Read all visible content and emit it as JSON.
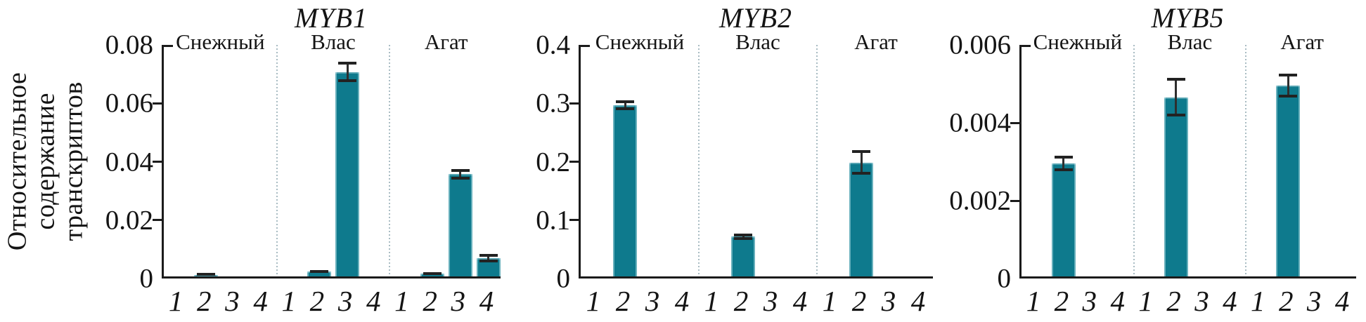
{
  "chart_data": {
    "type": "bar",
    "ylabel_lines": [
      "Относительное",
      "содержание",
      "транскриптов"
    ],
    "group_ticks": [
      "1",
      "2",
      "3",
      "4"
    ],
    "colors": {
      "bar": "#0e7a8d",
      "error": "#222222",
      "axis": "#1b1b1b",
      "section_divider": "#a9bcc3"
    },
    "legend": "none",
    "grid": false,
    "panels": [
      {
        "title": "MYB1",
        "ylim": [
          0,
          0.08
        ],
        "ytick_labels": [
          "0.08",
          "0.06",
          "0.04",
          "0.02",
          "0"
        ],
        "sections": [
          {
            "label": "Снежный",
            "values": [
              0,
              0.0006,
              0,
              0
            ],
            "errors": [
              0,
              0.0004,
              0,
              0
            ]
          },
          {
            "label": "Влас",
            "values": [
              0,
              0.0016,
              0.07,
              0
            ],
            "errors": [
              0,
              0.0005,
              0.0035,
              0
            ]
          },
          {
            "label": "Агат",
            "values": [
              0,
              0.001,
              0.035,
              0.0063
            ],
            "errors": [
              0,
              0.0004,
              0.0018,
              0.0014
            ]
          }
        ]
      },
      {
        "title": "MYB2",
        "ylim": [
          0,
          0.4
        ],
        "ytick_labels": [
          "0.4",
          "0.3",
          "0.2",
          "0.1",
          "0"
        ],
        "sections": [
          {
            "label": "Снежный",
            "values": [
              0,
              0.293,
              0,
              0
            ],
            "errors": [
              0,
              0.008,
              0,
              0
            ]
          },
          {
            "label": "Влас",
            "values": [
              0,
              0.068,
              0,
              0
            ],
            "errors": [
              0,
              0.005,
              0,
              0
            ]
          },
          {
            "label": "Агат",
            "values": [
              0,
              0.195,
              0,
              0
            ],
            "errors": [
              0,
              0.021,
              0,
              0
            ]
          }
        ]
      },
      {
        "title": "MYB5",
        "ylim": [
          0,
          0.006
        ],
        "ytick_labels": [
          "0.006",
          "0.004",
          "0.002",
          "0"
        ],
        "sections": [
          {
            "label": "Снежный",
            "values": [
              0,
              0.0029,
              0,
              0
            ],
            "errors": [
              0,
              0.0002,
              0,
              0
            ]
          },
          {
            "label": "Влас",
            "values": [
              0,
              0.0046,
              0,
              0
            ],
            "errors": [
              0,
              0.0005,
              0,
              0
            ]
          },
          {
            "label": "Агат",
            "values": [
              0,
              0.0049,
              0,
              0
            ],
            "errors": [
              0,
              0.0003,
              0,
              0
            ]
          }
        ]
      }
    ]
  }
}
